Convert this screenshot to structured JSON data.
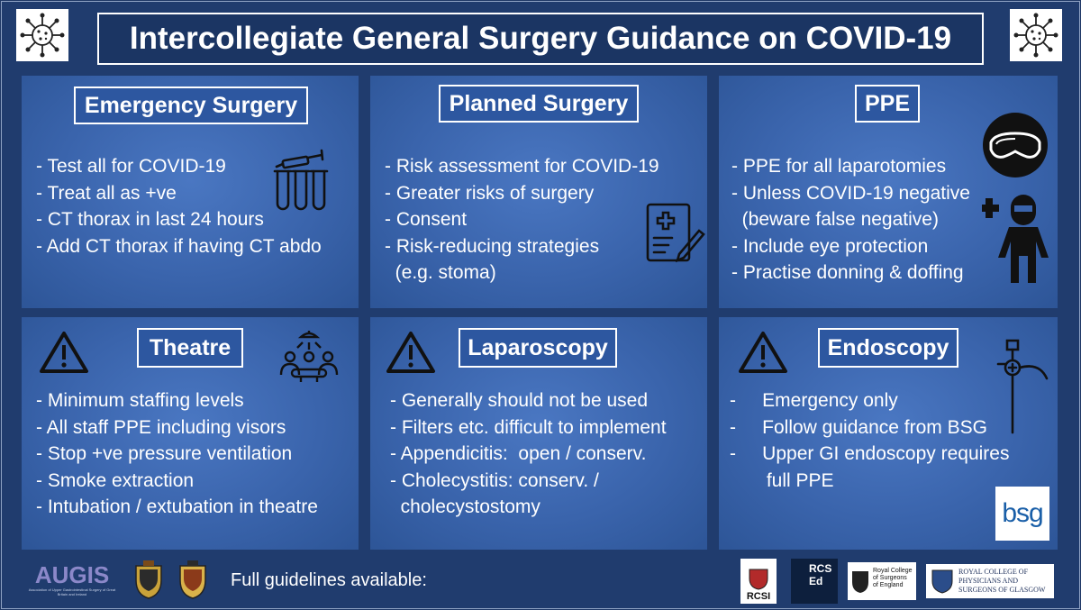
{
  "title": "Intercollegiate General Surgery Guidance on COVID-19",
  "panels": {
    "emergency": {
      "title": "Emergency Surgery",
      "items": [
        "- Test all for COVID-19",
        "- Treat all as +ve",
        "- CT thorax in last 24 hours",
        "- Add CT thorax if having CT abdo"
      ]
    },
    "planned": {
      "title": "Planned Surgery",
      "items": [
        "- Risk assessment for COVID-19",
        "- Greater risks of surgery",
        "- Consent",
        "- Risk-reducing strategies",
        "  (e.g. stoma)"
      ]
    },
    "ppe": {
      "title": "PPE",
      "items": [
        "- PPE for all laparotomies",
        "- Unless COVID-19 negative",
        "  (beware false negative)",
        "- Include eye protection",
        "- Practise donning & doffing"
      ]
    },
    "theatre": {
      "title": "Theatre",
      "items": [
        "- Minimum staffing levels",
        "- All staff PPE including visors",
        "- Stop +ve pressure ventilation",
        "- Smoke extraction",
        "- Intubation / extubation in theatre"
      ]
    },
    "laparoscopy": {
      "title": "Laparoscopy",
      "items": [
        "- Generally should not be used",
        "- Filters etc. difficult to implement",
        "- Appendicitis:  open / conserv.",
        "- Cholecystitis: conserv. /",
        "  cholecystostomy"
      ]
    },
    "endoscopy": {
      "title": "Endoscopy",
      "items": [
        "-     Emergency only",
        "-     Follow guidance from BSG",
        "-     Upper GI endoscopy requires",
        "       full PPE"
      ]
    }
  },
  "footer": {
    "text": "Full guidelines available:",
    "logos": {
      "augis": "AUGIS",
      "augis_sub": "Association of Upper Gastrointestinal Surgery of Great Britain and Ireland",
      "bsg": "bsg",
      "rcsi": "RCSI",
      "rcsed_1": "RCS",
      "rcsed_2": "Ed",
      "rcseng_1": "Royal College",
      "rcseng_2": "of Surgeons",
      "rcseng_3": "of England",
      "rcpsg_1": "ROYAL COLLEGE OF",
      "rcpsg_2": "PHYSICIANS AND",
      "rcpsg_3": "SURGEONS OF GLASGOW"
    }
  },
  "colors": {
    "background": "#203c6e",
    "panel": "#3a64ac",
    "text": "#ffffff",
    "augis": "#8b88c9"
  }
}
